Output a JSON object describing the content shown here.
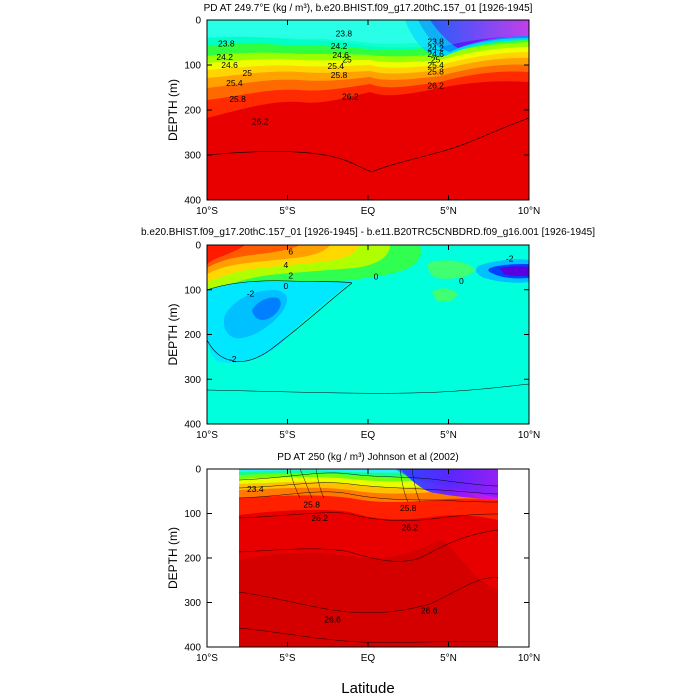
{
  "figure": {
    "xlabel": "Latitude",
    "ylabel": "DEPTH (m)"
  },
  "chart_data": [
    {
      "type": "contour",
      "title": "PD AT 249.7°E (kg / m³), b.e20.BHIST.f09_g17.20thC.157_01 [1926-1945]",
      "xlabel": "Latitude",
      "ylabel": "DEPTH (m)",
      "xlim": [
        -10,
        10
      ],
      "ylim": [
        400,
        0
      ],
      "xticks": [
        -10,
        -5,
        0,
        5,
        10
      ],
      "xtick_labels": [
        "10°S",
        "5°S",
        "EQ",
        "5°N",
        "10°N"
      ],
      "yticks": [
        0,
        100,
        200,
        300,
        400
      ],
      "ytick_labels": [
        "0",
        "100",
        "200",
        "300",
        "400"
      ],
      "contour_labels": [
        {
          "text": "23.8",
          "x": -8.8,
          "y": 52
        },
        {
          "text": "24.2",
          "x": -8.9,
          "y": 82
        },
        {
          "text": "24.6",
          "x": -8.6,
          "y": 100
        },
        {
          "text": "25",
          "x": -7.5,
          "y": 118
        },
        {
          "text": "25.4",
          "x": -8.3,
          "y": 140
        },
        {
          "text": "25.8",
          "x": -8.1,
          "y": 175
        },
        {
          "text": "26.2",
          "x": -6.7,
          "y": 225
        },
        {
          "text": "23.8",
          "x": -1.5,
          "y": 30
        },
        {
          "text": "24.2",
          "x": -1.8,
          "y": 58
        },
        {
          "text": "24.6",
          "x": -1.7,
          "y": 78
        },
        {
          "text": "25",
          "x": -1.3,
          "y": 88
        },
        {
          "text": "25.4",
          "x": -2.0,
          "y": 102
        },
        {
          "text": "25.8",
          "x": -1.8,
          "y": 122
        },
        {
          "text": "26.2",
          "x": -1.1,
          "y": 170
        },
        {
          "text": "23.8",
          "x": 4.2,
          "y": 48
        },
        {
          "text": "24.2",
          "x": 4.2,
          "y": 62
        },
        {
          "text": "24.6",
          "x": 4.2,
          "y": 76
        },
        {
          "text": "25",
          "x": 4.2,
          "y": 88
        },
        {
          "text": "25.4",
          "x": 4.2,
          "y": 100
        },
        {
          "text": "25.8",
          "x": 4.2,
          "y": 114
        },
        {
          "text": "26.2",
          "x": 4.2,
          "y": 146
        }
      ]
    },
    {
      "type": "contour",
      "title": "b.e20.BHIST.f09_g17.20thC.157_01 [1926-1945] - b.e11.B20TRC5CNBDRD.f09_g16.001 [1926-1945]",
      "xlabel": "Latitude",
      "ylabel": "DEPTH (m)",
      "xlim": [
        -10,
        10
      ],
      "ylim": [
        400,
        0
      ],
      "xticks": [
        -10,
        -5,
        0,
        5,
        10
      ],
      "xtick_labels": [
        "10°S",
        "5°S",
        "EQ",
        "5°N",
        "10°N"
      ],
      "yticks": [
        0,
        100,
        200,
        300,
        400
      ],
      "ytick_labels": [
        "0",
        "100",
        "200",
        "300",
        "400"
      ],
      "contour_labels": [
        {
          "text": "6",
          "x": -4.8,
          "y": 15
        },
        {
          "text": "4",
          "x": -5.1,
          "y": 45
        },
        {
          "text": "2",
          "x": -4.8,
          "y": 68
        },
        {
          "text": "0",
          "x": -5.1,
          "y": 92
        },
        {
          "text": "-2",
          "x": -7.3,
          "y": 108
        },
        {
          "text": "-2",
          "x": -8.4,
          "y": 255
        },
        {
          "text": "0",
          "x": 0.5,
          "y": 70
        },
        {
          "text": "0",
          "x": 5.8,
          "y": 80
        },
        {
          "text": "-2",
          "x": 8.8,
          "y": 30
        }
      ]
    },
    {
      "type": "contour",
      "title": "PD AT 250 (kg / m³) Johnson et al (2002)",
      "xlabel": "Latitude",
      "ylabel": "DEPTH (m)",
      "xlim": [
        -10,
        10
      ],
      "ylim": [
        400,
        0
      ],
      "data_xrange": [
        -8,
        8
      ],
      "xticks": [
        -10,
        -5,
        0,
        5,
        10
      ],
      "xtick_labels": [
        "10°S",
        "5°S",
        "EQ",
        "5°N",
        "10°N"
      ],
      "yticks": [
        0,
        100,
        200,
        300,
        400
      ],
      "ytick_labels": [
        "0",
        "100",
        "200",
        "300",
        "400"
      ],
      "contour_labels": [
        {
          "text": "23.4",
          "x": -7.0,
          "y": 45
        },
        {
          "text": "25.8",
          "x": -3.5,
          "y": 80
        },
        {
          "text": "26.2",
          "x": -3.0,
          "y": 110
        },
        {
          "text": "26.2",
          "x": 2.6,
          "y": 132
        },
        {
          "text": "26.6",
          "x": -2.2,
          "y": 338
        },
        {
          "text": "26.6",
          "x": 3.8,
          "y": 318
        },
        {
          "text": "25.8",
          "x": 2.5,
          "y": 88
        }
      ]
    }
  ]
}
